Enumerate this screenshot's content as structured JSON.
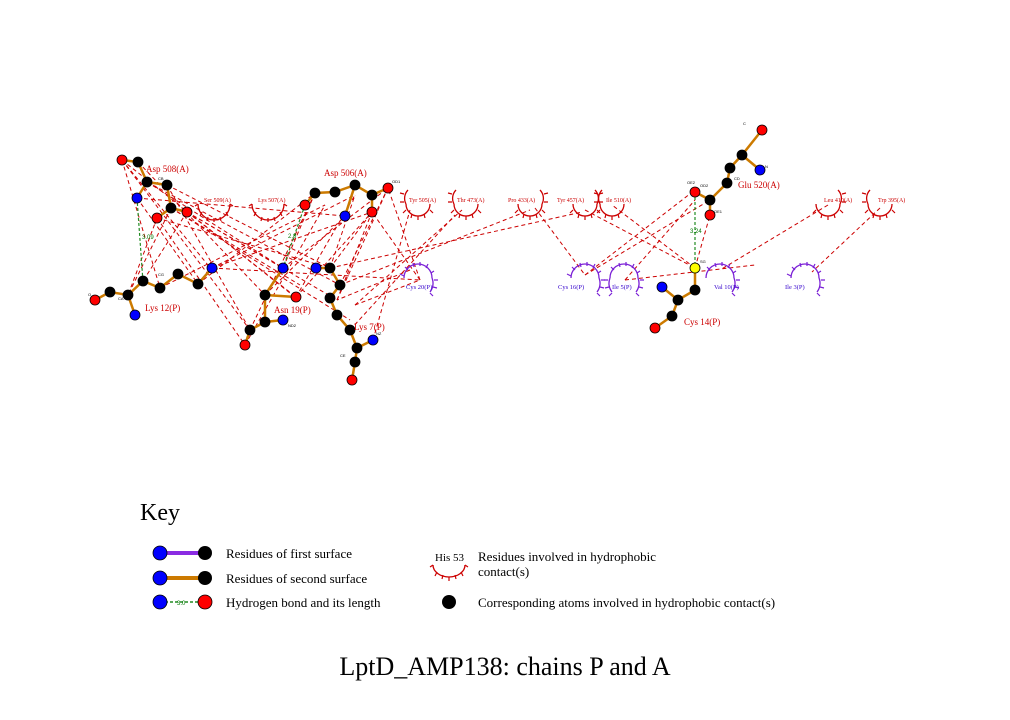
{
  "title": "LptD_AMP138: chains P and A",
  "key": {
    "heading": "Key",
    "first_surface": "Residues of first surface",
    "second_surface": "Residues of second surface",
    "hbond": "Hydrogen bond and its length",
    "hbond_sample_length": "3.0",
    "hydrophobic_sample": "His 53",
    "hydrophobic_residues": "Residues involved in hydrophobic contact(s)",
    "hydrophobic_atoms": "Corresponding atoms involved in hydrophobic contact(s)"
  },
  "colors": {
    "first_surface_bond": "#8a2be2",
    "second_surface_bond": "#cc7a00",
    "hbond": "#228b22",
    "hydrophobic_contact": "#cc0000",
    "chain_P_arc": "#7a1fd6",
    "chain_A_arc": "#cc0000",
    "oxygen": "#ff0000",
    "nitrogen": "#0000ff",
    "carbon": "#000000",
    "sulfur": "#ffff00"
  },
  "residue_labels": {
    "asp508": "Asp 508(A)",
    "asp506": "Asp 506(A)",
    "glu520": "Glu 520(A)",
    "lys12": "Lys 12(P)",
    "asn19": "Asn 19(P)",
    "lys7": "Lys 7(P)",
    "cys14": "Cys 14(P)"
  },
  "hydrophobic_arcs_A": [
    "Ser 509(A)",
    "Lys 507(A)",
    "Tyr 505(A)",
    "Thr 473(A)",
    "Pro 433(A)",
    "Tyr 457(A)",
    "Ile 510(A)",
    "Leu 410(A)",
    "Trp 395(A)"
  ],
  "hydrophobic_arcs_P": [
    "Cys 20(P)",
    "Cys 16(P)",
    "Ile 5(P)",
    "Val 10(P)",
    "Ile 3(P)"
  ],
  "hbond_lengths": [
    "3.09",
    "2.8",
    "3.24"
  ],
  "atom_labels": [
    "CB",
    "CA",
    "OD1",
    "OD2",
    "C",
    "O",
    "N",
    "CG",
    "OE1",
    "OE2",
    "CD",
    "NZ",
    "CE",
    "SG",
    "ND2"
  ]
}
